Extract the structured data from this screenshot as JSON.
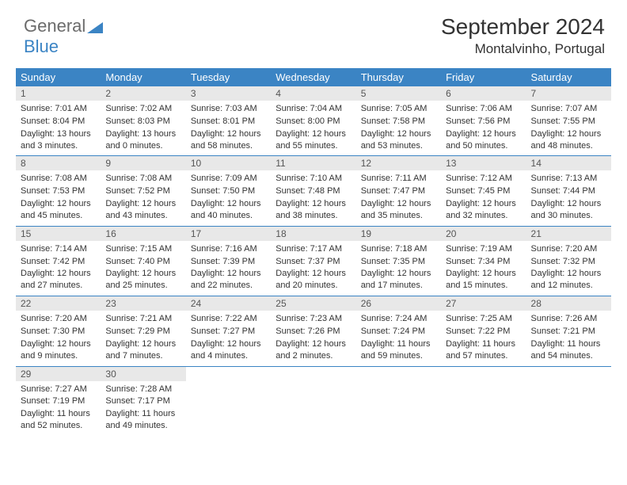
{
  "brand": {
    "part1": "General",
    "part2": "Blue"
  },
  "title": "September 2024",
  "location": "Montalvinho, Portugal",
  "colors": {
    "header_bg": "#3b84c4",
    "header_text": "#ffffff",
    "daynum_bg": "#e8e8e8",
    "border": "#3b84c4",
    "text": "#333333",
    "logo_gray": "#6b6b6b",
    "logo_blue": "#3b84c4"
  },
  "weekdays": [
    "Sunday",
    "Monday",
    "Tuesday",
    "Wednesday",
    "Thursday",
    "Friday",
    "Saturday"
  ],
  "days": [
    {
      "n": "1",
      "sunrise": "Sunrise: 7:01 AM",
      "sunset": "Sunset: 8:04 PM",
      "daylight": "Daylight: 13 hours and 3 minutes."
    },
    {
      "n": "2",
      "sunrise": "Sunrise: 7:02 AM",
      "sunset": "Sunset: 8:03 PM",
      "daylight": "Daylight: 13 hours and 0 minutes."
    },
    {
      "n": "3",
      "sunrise": "Sunrise: 7:03 AM",
      "sunset": "Sunset: 8:01 PM",
      "daylight": "Daylight: 12 hours and 58 minutes."
    },
    {
      "n": "4",
      "sunrise": "Sunrise: 7:04 AM",
      "sunset": "Sunset: 8:00 PM",
      "daylight": "Daylight: 12 hours and 55 minutes."
    },
    {
      "n": "5",
      "sunrise": "Sunrise: 7:05 AM",
      "sunset": "Sunset: 7:58 PM",
      "daylight": "Daylight: 12 hours and 53 minutes."
    },
    {
      "n": "6",
      "sunrise": "Sunrise: 7:06 AM",
      "sunset": "Sunset: 7:56 PM",
      "daylight": "Daylight: 12 hours and 50 minutes."
    },
    {
      "n": "7",
      "sunrise": "Sunrise: 7:07 AM",
      "sunset": "Sunset: 7:55 PM",
      "daylight": "Daylight: 12 hours and 48 minutes."
    },
    {
      "n": "8",
      "sunrise": "Sunrise: 7:08 AM",
      "sunset": "Sunset: 7:53 PM",
      "daylight": "Daylight: 12 hours and 45 minutes."
    },
    {
      "n": "9",
      "sunrise": "Sunrise: 7:08 AM",
      "sunset": "Sunset: 7:52 PM",
      "daylight": "Daylight: 12 hours and 43 minutes."
    },
    {
      "n": "10",
      "sunrise": "Sunrise: 7:09 AM",
      "sunset": "Sunset: 7:50 PM",
      "daylight": "Daylight: 12 hours and 40 minutes."
    },
    {
      "n": "11",
      "sunrise": "Sunrise: 7:10 AM",
      "sunset": "Sunset: 7:48 PM",
      "daylight": "Daylight: 12 hours and 38 minutes."
    },
    {
      "n": "12",
      "sunrise": "Sunrise: 7:11 AM",
      "sunset": "Sunset: 7:47 PM",
      "daylight": "Daylight: 12 hours and 35 minutes."
    },
    {
      "n": "13",
      "sunrise": "Sunrise: 7:12 AM",
      "sunset": "Sunset: 7:45 PM",
      "daylight": "Daylight: 12 hours and 32 minutes."
    },
    {
      "n": "14",
      "sunrise": "Sunrise: 7:13 AM",
      "sunset": "Sunset: 7:44 PM",
      "daylight": "Daylight: 12 hours and 30 minutes."
    },
    {
      "n": "15",
      "sunrise": "Sunrise: 7:14 AM",
      "sunset": "Sunset: 7:42 PM",
      "daylight": "Daylight: 12 hours and 27 minutes."
    },
    {
      "n": "16",
      "sunrise": "Sunrise: 7:15 AM",
      "sunset": "Sunset: 7:40 PM",
      "daylight": "Daylight: 12 hours and 25 minutes."
    },
    {
      "n": "17",
      "sunrise": "Sunrise: 7:16 AM",
      "sunset": "Sunset: 7:39 PM",
      "daylight": "Daylight: 12 hours and 22 minutes."
    },
    {
      "n": "18",
      "sunrise": "Sunrise: 7:17 AM",
      "sunset": "Sunset: 7:37 PM",
      "daylight": "Daylight: 12 hours and 20 minutes."
    },
    {
      "n": "19",
      "sunrise": "Sunrise: 7:18 AM",
      "sunset": "Sunset: 7:35 PM",
      "daylight": "Daylight: 12 hours and 17 minutes."
    },
    {
      "n": "20",
      "sunrise": "Sunrise: 7:19 AM",
      "sunset": "Sunset: 7:34 PM",
      "daylight": "Daylight: 12 hours and 15 minutes."
    },
    {
      "n": "21",
      "sunrise": "Sunrise: 7:20 AM",
      "sunset": "Sunset: 7:32 PM",
      "daylight": "Daylight: 12 hours and 12 minutes."
    },
    {
      "n": "22",
      "sunrise": "Sunrise: 7:20 AM",
      "sunset": "Sunset: 7:30 PM",
      "daylight": "Daylight: 12 hours and 9 minutes."
    },
    {
      "n": "23",
      "sunrise": "Sunrise: 7:21 AM",
      "sunset": "Sunset: 7:29 PM",
      "daylight": "Daylight: 12 hours and 7 minutes."
    },
    {
      "n": "24",
      "sunrise": "Sunrise: 7:22 AM",
      "sunset": "Sunset: 7:27 PM",
      "daylight": "Daylight: 12 hours and 4 minutes."
    },
    {
      "n": "25",
      "sunrise": "Sunrise: 7:23 AM",
      "sunset": "Sunset: 7:26 PM",
      "daylight": "Daylight: 12 hours and 2 minutes."
    },
    {
      "n": "26",
      "sunrise": "Sunrise: 7:24 AM",
      "sunset": "Sunset: 7:24 PM",
      "daylight": "Daylight: 11 hours and 59 minutes."
    },
    {
      "n": "27",
      "sunrise": "Sunrise: 7:25 AM",
      "sunset": "Sunset: 7:22 PM",
      "daylight": "Daylight: 11 hours and 57 minutes."
    },
    {
      "n": "28",
      "sunrise": "Sunrise: 7:26 AM",
      "sunset": "Sunset: 7:21 PM",
      "daylight": "Daylight: 11 hours and 54 minutes."
    },
    {
      "n": "29",
      "sunrise": "Sunrise: 7:27 AM",
      "sunset": "Sunset: 7:19 PM",
      "daylight": "Daylight: 11 hours and 52 minutes."
    },
    {
      "n": "30",
      "sunrise": "Sunrise: 7:28 AM",
      "sunset": "Sunset: 7:17 PM",
      "daylight": "Daylight: 11 hours and 49 minutes."
    }
  ],
  "layout": {
    "first_weekday_index": 0,
    "trailing_empty": 5
  }
}
